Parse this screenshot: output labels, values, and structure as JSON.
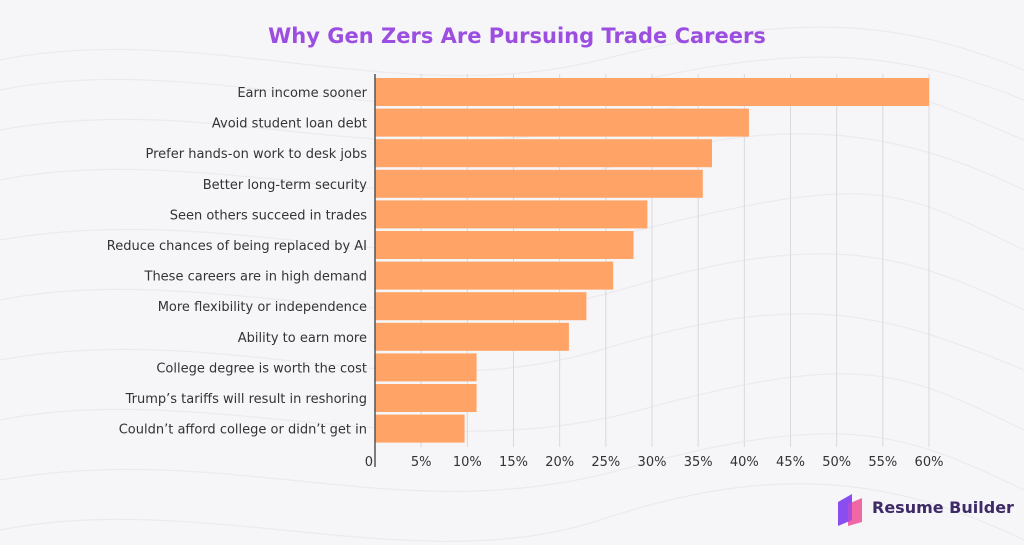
{
  "colors": {
    "title": "#9b4ee0",
    "bar": "#ffa466",
    "grid": "#d9d9de",
    "axis": "#555555",
    "text": "#333333",
    "brand_text": "#3d2a66",
    "brand_icon_left": "#8a4df0",
    "brand_icon_right": "#f05a9a"
  },
  "chart_data": {
    "type": "bar",
    "orientation": "horizontal",
    "title": "Why Gen Zers Are Pursuing Trade Careers",
    "categories": [
      "Earn income sooner",
      "Avoid student loan debt",
      "Prefer hands-on work to desk jobs",
      "Better long-term security",
      "Seen others succeed in trades",
      "Reduce chances of being replaced by AI",
      "These careers are in high demand",
      "More flexibility or independence",
      "Ability to earn more",
      "College degree is worth the cost",
      "Trump’s tariffs will result in reshoring",
      "Couldn’t afford college or didn’t get in"
    ],
    "values": [
      60,
      40.5,
      36.5,
      35.5,
      29.5,
      28,
      25.8,
      22.9,
      21,
      11,
      11,
      9.7
    ],
    "xlim": [
      0,
      60
    ],
    "ticks": [
      "0",
      "5%",
      "10%",
      "15%",
      "20%",
      "25%",
      "30%",
      "35%",
      "40%",
      "45%",
      "50%",
      "55%",
      "60%"
    ],
    "grid": true
  },
  "brand": {
    "name": "Resume Builder",
    "icon": "resume-builder-logo-icon"
  }
}
